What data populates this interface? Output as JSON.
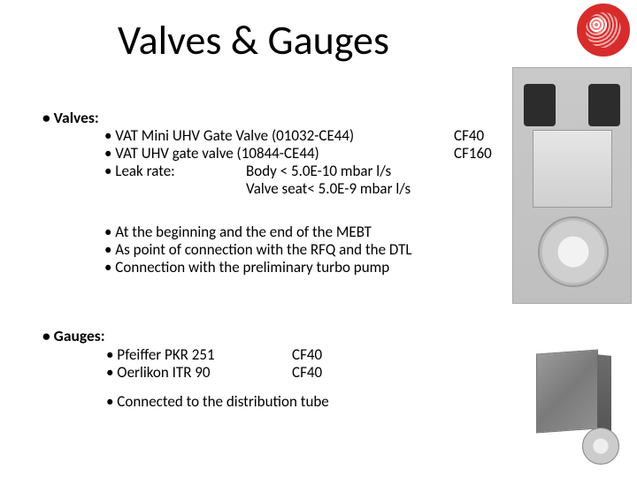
{
  "title": "Valves & Gauges",
  "sections": {
    "valves": {
      "heading": "• Valves:",
      "items": [
        {
          "label": "• VAT Mini UHV Gate Valve (01032-CE44)",
          "cf": "CF40"
        },
        {
          "label": "• VAT UHV gate valve (10844-CE44)",
          "cf": "CF160"
        }
      ],
      "leak": {
        "label": "• Leak rate:",
        "body": "Body < 5.0E-10 mbar l/s",
        "seat": "Valve seat< 5.0E-9 mbar l/s"
      },
      "notes": [
        "• At the beginning and the end of the MEBT",
        "• As point of connection with the RFQ and the DTL",
        "• Connection with the preliminary turbo pump"
      ]
    },
    "gauges": {
      "heading": "• Gauges:",
      "items": [
        {
          "label": "• Pfeiffer PKR 251",
          "cf": "CF40"
        },
        {
          "label": "• Oerlikon ITR 90",
          "cf": "CF40"
        }
      ],
      "note": "• Connected to the distribution tube"
    }
  }
}
